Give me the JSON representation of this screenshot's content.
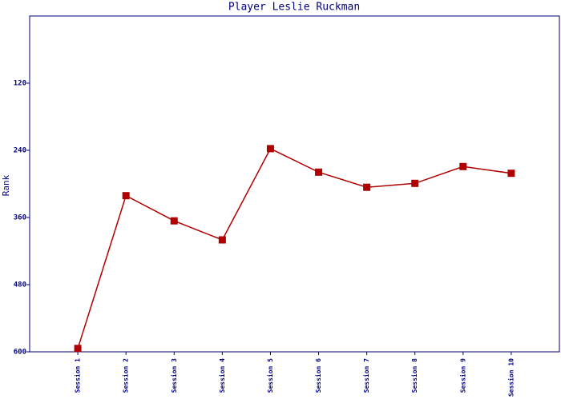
{
  "chart_data": {
    "type": "line",
    "title": "Player Leslie Ruckman",
    "y_label": "Rank",
    "categories": [
      "Session 1",
      "Session 2",
      "Session 3",
      "Session 4",
      "Session 5",
      "Session 6",
      "Session 7",
      "Session 8",
      "Session 9",
      "Session 10"
    ],
    "series": [
      {
        "name": "Rank",
        "color": "#b00000",
        "values": [
          594,
          321,
          366,
          400,
          237,
          279,
          306,
          299,
          269,
          281
        ]
      }
    ],
    "ylim": [
      600,
      0
    ],
    "yticks": [
      120,
      240,
      360,
      480,
      600
    ]
  }
}
